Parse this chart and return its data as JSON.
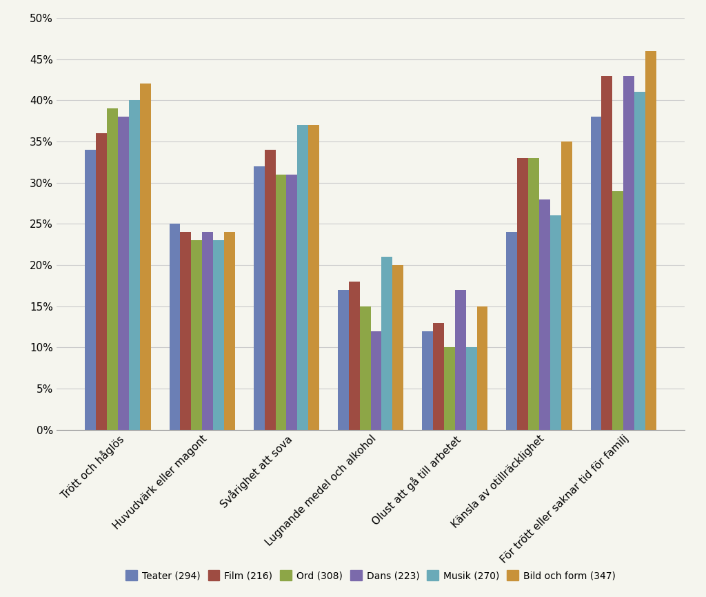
{
  "categories": [
    "Trött och håglös",
    "Huvudvärk eller magont",
    "Svårighet att sova",
    "Lugnande medel och alkohol",
    "Olust att gå till arbetet",
    "Känsla av otillräcklighet",
    "För trött eller saknar tid för familj"
  ],
  "series": {
    "Teater (294)": [
      34,
      25,
      32,
      17,
      12,
      24,
      38
    ],
    "Film (216)": [
      36,
      24,
      34,
      18,
      13,
      33,
      43
    ],
    "Ord (308)": [
      39,
      23,
      31,
      15,
      10,
      33,
      29
    ],
    "Dans (223)": [
      38,
      24,
      31,
      12,
      17,
      28,
      43
    ],
    "Musik (270)": [
      40,
      23,
      37,
      21,
      10,
      26,
      41
    ],
    "Bild och form (347)": [
      42,
      24,
      37,
      20,
      15,
      35,
      46
    ]
  },
  "colors": {
    "Teater (294)": "#6b7fb5",
    "Film (216)": "#9e4c42",
    "Ord (308)": "#8da647",
    "Dans (223)": "#7b6aab",
    "Musik (270)": "#6aaab8",
    "Bild och form (347)": "#c8923a"
  },
  "ylim": [
    0,
    50
  ],
  "yticks": [
    0,
    5,
    10,
    15,
    20,
    25,
    30,
    35,
    40,
    45,
    50
  ],
  "background_color": "#f5f5ee",
  "grid_color": "#cccccc",
  "bar_width": 0.13,
  "figsize": [
    10.24,
    8.65
  ],
  "dpi": 100
}
